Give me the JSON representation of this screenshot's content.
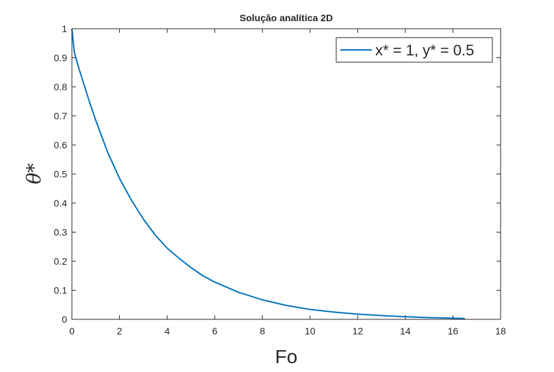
{
  "chart_data": {
    "type": "line",
    "title": "Solução analítica 2D",
    "xlabel": "Fo",
    "ylabel": "θ*",
    "xlim": [
      0,
      18
    ],
    "ylim": [
      0,
      1
    ],
    "xticks": [
      0,
      2,
      4,
      6,
      8,
      10,
      12,
      14,
      16,
      18
    ],
    "yticks": [
      0,
      0.1,
      0.2,
      0.3,
      0.4,
      0.5,
      0.6,
      0.7,
      0.8,
      0.9,
      1
    ],
    "grid": false,
    "legend_position": "top-right",
    "series": [
      {
        "name": "x* = 1, y* = 0.5",
        "color": "#0072BD",
        "x": [
          0,
          0.1,
          0.25,
          0.5,
          0.75,
          1,
          1.5,
          2,
          2.5,
          3,
          3.5,
          4,
          4.5,
          5,
          5.5,
          6,
          7,
          8,
          9,
          10,
          11,
          12,
          13,
          14,
          15,
          16,
          16.5
        ],
        "y": [
          1.0,
          0.92,
          0.875,
          0.81,
          0.745,
          0.685,
          0.575,
          0.485,
          0.41,
          0.345,
          0.29,
          0.245,
          0.21,
          0.178,
          0.15,
          0.128,
          0.093,
          0.067,
          0.048,
          0.034,
          0.025,
          0.018,
          0.013,
          0.009,
          0.006,
          0.004,
          0.003
        ]
      }
    ]
  }
}
